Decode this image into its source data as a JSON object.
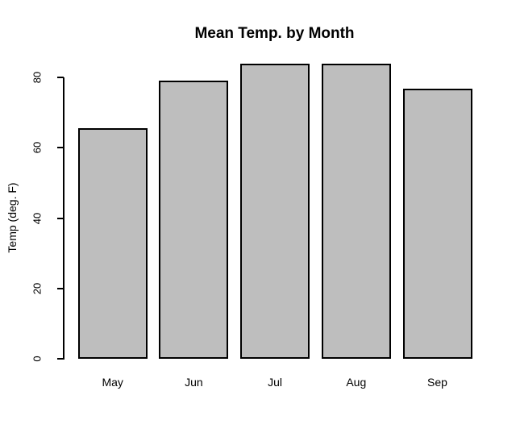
{
  "chart_data": {
    "type": "bar",
    "title": "Mean Temp. by Month",
    "xlabel": "",
    "ylabel": "Temp (deg. F)",
    "categories": [
      "May",
      "Jun",
      "Jul",
      "Aug",
      "Sep"
    ],
    "values": [
      65.5,
      79.1,
      83.9,
      84.0,
      76.9
    ],
    "ylim": [
      0,
      80
    ],
    "yticks": [
      0,
      20,
      40,
      60,
      80
    ],
    "grid": false,
    "legend": null,
    "bar_fill_color": "#bebebe",
    "bar_border_color": "#000000",
    "axis_color": "#000000",
    "text_color": "#000000",
    "background_color": "#ffffff"
  }
}
